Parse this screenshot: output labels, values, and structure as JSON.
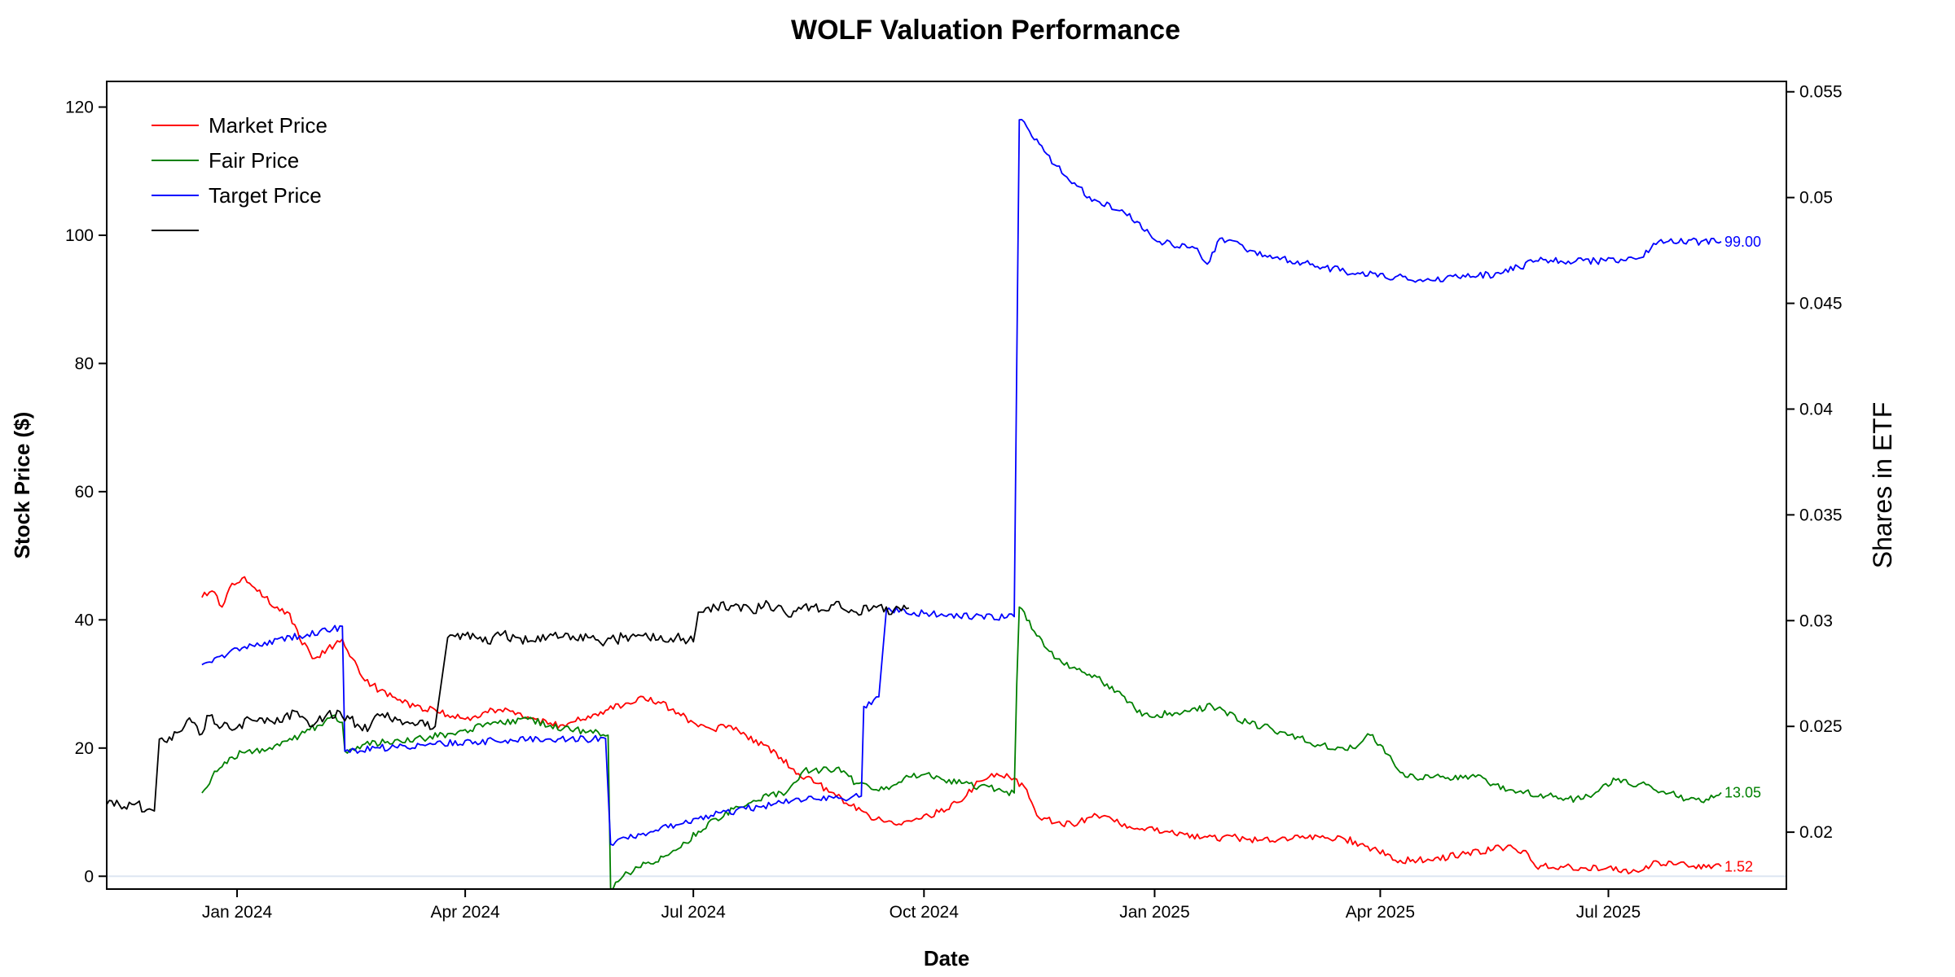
{
  "chart_data": {
    "type": "line",
    "title": "WOLF Valuation Performance",
    "xlabel": "Date",
    "ylabel": "Stock Price ($)",
    "y2label": "Shares in ETF",
    "x_ticks": [
      "Jan 2024",
      "Apr 2024",
      "Jul 2024",
      "Oct 2024",
      "Jan 2025",
      "Apr 2025",
      "Jul 2025"
    ],
    "xlim": [
      "2023-11-10",
      "2025-09-10"
    ],
    "ylim": [
      -2,
      124
    ],
    "y_ticks": [
      0,
      20,
      40,
      60,
      80,
      100,
      120
    ],
    "y2lim": [
      0.01731,
      0.05549
    ],
    "y2_ticks": [
      0.02,
      0.025,
      0.03,
      0.035,
      0.04,
      0.045,
      0.05,
      0.055
    ],
    "legend_position": "top-left",
    "grid": false,
    "zero_line": true,
    "series": [
      {
        "name": "Market Price",
        "color": "#ff0000",
        "axis": "left",
        "end_label": "1.52",
        "points": [
          [
            "2023-12-18",
            43.5
          ],
          [
            "2023-12-22",
            44.5
          ],
          [
            "2023-12-26",
            42.0
          ],
          [
            "2023-12-29",
            45.0
          ],
          [
            "2024-01-03",
            46.5
          ],
          [
            "2024-01-08",
            45.0
          ],
          [
            "2024-01-12",
            43.5
          ],
          [
            "2024-01-17",
            42.0
          ],
          [
            "2024-01-22",
            41.0
          ],
          [
            "2024-01-26",
            37.0
          ],
          [
            "2024-02-01",
            34.0
          ],
          [
            "2024-02-06",
            35.5
          ],
          [
            "2024-02-12",
            37.0
          ],
          [
            "2024-02-16",
            34.0
          ],
          [
            "2024-02-20",
            31.0
          ],
          [
            "2024-02-27",
            29.0
          ],
          [
            "2024-03-05",
            27.5
          ],
          [
            "2024-03-12",
            26.5
          ],
          [
            "2024-03-20",
            26.0
          ],
          [
            "2024-03-27",
            25.0
          ],
          [
            "2024-04-01",
            24.5
          ],
          [
            "2024-04-08",
            25.5
          ],
          [
            "2024-04-15",
            26.0
          ],
          [
            "2024-04-22",
            25.5
          ],
          [
            "2024-04-29",
            24.5
          ],
          [
            "2024-05-06",
            23.5
          ],
          [
            "2024-05-13",
            24.0
          ],
          [
            "2024-05-20",
            25.0
          ],
          [
            "2024-05-28",
            26.0
          ],
          [
            "2024-06-04",
            27.0
          ],
          [
            "2024-06-11",
            28.0
          ],
          [
            "2024-06-18",
            27.0
          ],
          [
            "2024-06-25",
            25.5
          ],
          [
            "2024-07-01",
            24.0
          ],
          [
            "2024-07-08",
            23.0
          ],
          [
            "2024-07-15",
            23.5
          ],
          [
            "2024-07-22",
            22.0
          ],
          [
            "2024-07-29",
            20.5
          ],
          [
            "2024-08-05",
            18.5
          ],
          [
            "2024-08-12",
            16.0
          ],
          [
            "2024-08-19",
            14.5
          ],
          [
            "2024-08-26",
            13.0
          ],
          [
            "2024-09-02",
            11.0
          ],
          [
            "2024-09-09",
            9.5
          ],
          [
            "2024-09-16",
            8.5
          ],
          [
            "2024-09-23",
            8.5
          ],
          [
            "2024-09-30",
            9.0
          ],
          [
            "2024-10-07",
            10.0
          ],
          [
            "2024-10-14",
            11.5
          ],
          [
            "2024-10-21",
            14.0
          ],
          [
            "2024-10-28",
            16.0
          ],
          [
            "2024-11-04",
            15.5
          ],
          [
            "2024-11-11",
            13.5
          ],
          [
            "2024-11-15",
            9.5
          ],
          [
            "2024-11-25",
            8.0
          ],
          [
            "2024-12-02",
            8.5
          ],
          [
            "2024-12-09",
            9.5
          ],
          [
            "2024-12-16",
            8.5
          ],
          [
            "2024-12-23",
            7.5
          ],
          [
            "2025-01-06",
            7.0
          ],
          [
            "2025-01-20",
            6.0
          ],
          [
            "2025-02-03",
            6.0
          ],
          [
            "2025-02-17",
            5.5
          ],
          [
            "2025-03-03",
            6.0
          ],
          [
            "2025-03-17",
            6.0
          ],
          [
            "2025-03-31",
            4.0
          ],
          [
            "2025-04-07",
            2.5
          ],
          [
            "2025-04-21",
            2.5
          ],
          [
            "2025-05-05",
            3.5
          ],
          [
            "2025-05-19",
            4.5
          ],
          [
            "2025-05-29",
            4.0
          ],
          [
            "2025-06-02",
            1.5
          ],
          [
            "2025-06-16",
            1.5
          ],
          [
            "2025-06-30",
            1.2
          ],
          [
            "2025-07-10",
            0.6
          ],
          [
            "2025-07-21",
            2.2
          ],
          [
            "2025-08-04",
            1.6
          ],
          [
            "2025-08-15",
            1.52
          ]
        ]
      },
      {
        "name": "Fair Price",
        "color": "#008000",
        "axis": "left",
        "end_label": "13.05",
        "points": [
          [
            "2023-12-18",
            13.0
          ],
          [
            "2023-12-22",
            15.5
          ],
          [
            "2023-12-29",
            18.5
          ],
          [
            "2024-01-05",
            19.5
          ],
          [
            "2024-01-12",
            19.5
          ],
          [
            "2024-01-19",
            21.0
          ],
          [
            "2024-01-26",
            22.0
          ],
          [
            "2024-02-02",
            23.5
          ],
          [
            "2024-02-08",
            25.0
          ],
          [
            "2024-02-12",
            24.0
          ],
          [
            "2024-02-13",
            19.5
          ],
          [
            "2024-02-20",
            20.5
          ],
          [
            "2024-03-01",
            21.0
          ],
          [
            "2024-03-15",
            21.5
          ],
          [
            "2024-03-29",
            22.5
          ],
          [
            "2024-04-12",
            24.0
          ],
          [
            "2024-04-26",
            24.5
          ],
          [
            "2024-05-10",
            23.0
          ],
          [
            "2024-05-24",
            22.5
          ],
          [
            "2024-05-28",
            22.0
          ],
          [
            "2024-05-29",
            -2.0
          ],
          [
            "2024-06-05",
            0.5
          ],
          [
            "2024-06-12",
            2.0
          ],
          [
            "2024-06-19",
            3.0
          ],
          [
            "2024-06-26",
            4.5
          ],
          [
            "2024-07-03",
            7.0
          ],
          [
            "2024-07-10",
            9.0
          ],
          [
            "2024-07-17",
            10.5
          ],
          [
            "2024-07-24",
            11.5
          ],
          [
            "2024-07-31",
            12.5
          ],
          [
            "2024-08-07",
            13.0
          ],
          [
            "2024-08-14",
            16.5
          ],
          [
            "2024-08-21",
            16.5
          ],
          [
            "2024-08-28",
            17.0
          ],
          [
            "2024-09-04",
            14.5
          ],
          [
            "2024-09-11",
            13.5
          ],
          [
            "2024-09-18",
            14.0
          ],
          [
            "2024-09-25",
            15.5
          ],
          [
            "2024-10-02",
            16.0
          ],
          [
            "2024-10-09",
            15.0
          ],
          [
            "2024-10-16",
            14.5
          ],
          [
            "2024-10-23",
            14.0
          ],
          [
            "2024-10-30",
            13.5
          ],
          [
            "2024-11-06",
            13.0
          ],
          [
            "2024-11-07",
            30.0
          ],
          [
            "2024-11-08",
            42.0
          ],
          [
            "2024-11-15",
            37.5
          ],
          [
            "2024-11-22",
            34.0
          ],
          [
            "2024-11-29",
            32.5
          ],
          [
            "2024-12-06",
            31.5
          ],
          [
            "2024-12-13",
            30.0
          ],
          [
            "2024-12-20",
            28.0
          ],
          [
            "2024-12-27",
            25.0
          ],
          [
            "2025-01-10",
            25.5
          ],
          [
            "2025-01-24",
            26.5
          ],
          [
            "2025-02-07",
            24.0
          ],
          [
            "2025-02-21",
            22.5
          ],
          [
            "2025-03-07",
            20.5
          ],
          [
            "2025-03-21",
            20.0
          ],
          [
            "2025-03-28",
            22.0
          ],
          [
            "2025-04-04",
            19.0
          ],
          [
            "2025-04-11",
            15.5
          ],
          [
            "2025-04-25",
            15.5
          ],
          [
            "2025-05-09",
            15.5
          ],
          [
            "2025-05-23",
            13.5
          ],
          [
            "2025-06-06",
            12.5
          ],
          [
            "2025-06-20",
            12.0
          ],
          [
            "2025-07-04",
            15.0
          ],
          [
            "2025-07-18",
            14.0
          ],
          [
            "2025-08-01",
            12.0
          ],
          [
            "2025-08-08",
            11.5
          ],
          [
            "2025-08-15",
            13.05
          ]
        ]
      },
      {
        "name": "Target Price",
        "color": "#0000ff",
        "axis": "left",
        "end_label": "99.00",
        "points": [
          [
            "2023-12-18",
            33.0
          ],
          [
            "2023-12-29",
            35.0
          ],
          [
            "2024-01-12",
            36.5
          ],
          [
            "2024-01-26",
            37.5
          ],
          [
            "2024-02-08",
            38.5
          ],
          [
            "2024-02-12",
            39.0
          ],
          [
            "2024-02-13",
            19.5
          ],
          [
            "2024-02-27",
            20.0
          ],
          [
            "2024-03-15",
            20.5
          ],
          [
            "2024-04-05",
            21.0
          ],
          [
            "2024-04-26",
            21.3
          ],
          [
            "2024-05-27",
            21.5
          ],
          [
            "2024-05-29",
            5.0
          ],
          [
            "2024-06-10",
            6.5
          ],
          [
            "2024-06-24",
            8.0
          ],
          [
            "2024-07-08",
            9.5
          ],
          [
            "2024-07-22",
            10.5
          ],
          [
            "2024-08-05",
            11.5
          ],
          [
            "2024-08-19",
            12.0
          ],
          [
            "2024-09-02",
            12.3
          ],
          [
            "2024-09-06",
            12.5
          ],
          [
            "2024-09-07",
            26.5
          ],
          [
            "2024-09-13",
            28.0
          ],
          [
            "2024-09-16",
            41.5
          ],
          [
            "2024-10-01",
            41.0
          ],
          [
            "2024-10-15",
            40.5
          ],
          [
            "2024-11-06",
            40.5
          ],
          [
            "2024-11-07",
            80.0
          ],
          [
            "2024-11-08",
            118.0
          ],
          [
            "2024-11-15",
            115.0
          ],
          [
            "2024-11-22",
            111.0
          ],
          [
            "2024-12-06",
            106.0
          ],
          [
            "2024-12-20",
            103.5
          ],
          [
            "2025-01-03",
            99.0
          ],
          [
            "2025-01-17",
            98.0
          ],
          [
            "2025-01-22",
            95.5
          ],
          [
            "2025-01-27",
            99.5
          ],
          [
            "2025-02-10",
            97.5
          ],
          [
            "2025-02-24",
            96.0
          ],
          [
            "2025-03-10",
            95.0
          ],
          [
            "2025-03-24",
            94.0
          ],
          [
            "2025-04-07",
            93.5
          ],
          [
            "2025-04-21",
            93.0
          ],
          [
            "2025-05-05",
            93.5
          ],
          [
            "2025-05-19",
            94.0
          ],
          [
            "2025-06-02",
            96.0
          ],
          [
            "2025-06-30",
            96.0
          ],
          [
            "2025-07-14",
            96.5
          ],
          [
            "2025-07-21",
            99.0
          ],
          [
            "2025-08-15",
            99.0
          ]
        ]
      },
      {
        "name": "",
        "color": "#000000",
        "axis": "right",
        "points": [
          [
            "2023-11-10",
            0.0213
          ],
          [
            "2023-11-14",
            0.0215
          ],
          [
            "2023-11-17",
            0.0212
          ],
          [
            "2023-11-21",
            0.0213
          ],
          [
            "2023-11-27",
            0.0211
          ],
          [
            "2023-11-29",
            0.021
          ],
          [
            "2023-12-01",
            0.0244
          ],
          [
            "2023-12-05",
            0.0245
          ],
          [
            "2023-12-10",
            0.0248
          ],
          [
            "2023-12-13",
            0.0254
          ],
          [
            "2023-12-17",
            0.0246
          ],
          [
            "2023-12-21",
            0.0255
          ],
          [
            "2023-12-26",
            0.025
          ],
          [
            "2024-01-02",
            0.0251
          ],
          [
            "2024-01-10",
            0.0254
          ],
          [
            "2024-01-18",
            0.0252
          ],
          [
            "2024-01-25",
            0.0257
          ],
          [
            "2024-01-31",
            0.025
          ],
          [
            "2024-02-06",
            0.0256
          ],
          [
            "2024-02-14",
            0.0255
          ],
          [
            "2024-02-20",
            0.0248
          ],
          [
            "2024-02-27",
            0.0255
          ],
          [
            "2024-03-05",
            0.0253
          ],
          [
            "2024-03-13",
            0.0251
          ],
          [
            "2024-03-20",
            0.025
          ],
          [
            "2024-03-25",
            0.0292
          ],
          [
            "2024-04-01",
            0.0293
          ],
          [
            "2024-04-08",
            0.029
          ],
          [
            "2024-04-15",
            0.0293
          ],
          [
            "2024-04-22",
            0.0292
          ],
          [
            "2024-04-29",
            0.029
          ],
          [
            "2024-05-06",
            0.0293
          ],
          [
            "2024-05-13",
            0.0291
          ],
          [
            "2024-05-20",
            0.0292
          ],
          [
            "2024-05-27",
            0.029
          ],
          [
            "2024-06-03",
            0.0292
          ],
          [
            "2024-06-10",
            0.0293
          ],
          [
            "2024-06-17",
            0.0291
          ],
          [
            "2024-06-24",
            0.0292
          ],
          [
            "2024-07-01",
            0.029
          ],
          [
            "2024-07-03",
            0.0304
          ],
          [
            "2024-07-10",
            0.0306
          ],
          [
            "2024-07-17",
            0.0307
          ],
          [
            "2024-07-24",
            0.0305
          ],
          [
            "2024-07-31",
            0.0308
          ],
          [
            "2024-08-07",
            0.0303
          ],
          [
            "2024-08-14",
            0.0307
          ],
          [
            "2024-08-21",
            0.0305
          ],
          [
            "2024-08-28",
            0.0309
          ],
          [
            "2024-09-04",
            0.0304
          ],
          [
            "2024-09-11",
            0.0307
          ],
          [
            "2024-09-18",
            0.0303
          ],
          [
            "2024-09-21",
            0.0306
          ],
          [
            "2024-09-25",
            0.0306
          ]
        ]
      }
    ]
  }
}
